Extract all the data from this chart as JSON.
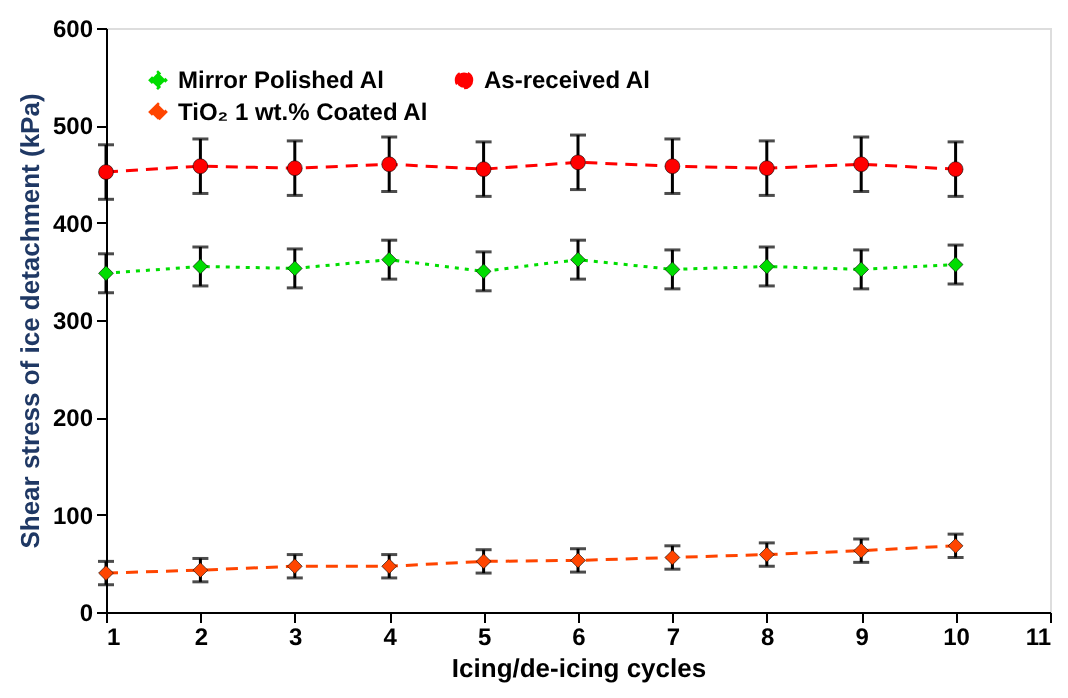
{
  "chart_data": {
    "type": "line",
    "xlabel": "Icing/de-icing cycles",
    "ylabel": "Shear stress of ice detachment (kPa)",
    "x": [
      1,
      2,
      3,
      4,
      5,
      6,
      7,
      8,
      9,
      10
    ],
    "xlim": [
      1,
      11
    ],
    "xticks": [
      1,
      2,
      3,
      4,
      5,
      6,
      7,
      8,
      9,
      10,
      11
    ],
    "ylim": [
      0,
      600
    ],
    "yticks": [
      0,
      100,
      200,
      300,
      400,
      500,
      600
    ],
    "grid": false,
    "legend": "top left",
    "series": [
      {
        "name": "Mirror Polished Al",
        "color": "#00dd00",
        "marker": "diamond",
        "line_style": "dotted",
        "values": [
          348,
          355,
          353,
          362,
          350,
          362,
          352,
          355,
          352,
          357
        ],
        "errors": [
          20,
          20,
          20,
          20,
          20,
          20,
          20,
          20,
          20,
          20
        ]
      },
      {
        "name": "TiO₂ 1 wt.% Coated Al",
        "color": "#ff4500",
        "marker": "diamond",
        "line_style": "dashed",
        "values": [
          40,
          43,
          47,
          47,
          52,
          53,
          56,
          59,
          63,
          68
        ],
        "errors": [
          12,
          12,
          12,
          12,
          12,
          12,
          12,
          12,
          12,
          12
        ]
      },
      {
        "name": "As-received Al",
        "color": "#ff0000",
        "marker": "circle",
        "line_style": "dashed",
        "values": [
          452,
          458,
          456,
          460,
          455,
          462,
          458,
          456,
          460,
          455
        ],
        "errors": [
          28,
          28,
          28,
          28,
          28,
          28,
          28,
          28,
          28,
          28
        ]
      }
    ]
  }
}
